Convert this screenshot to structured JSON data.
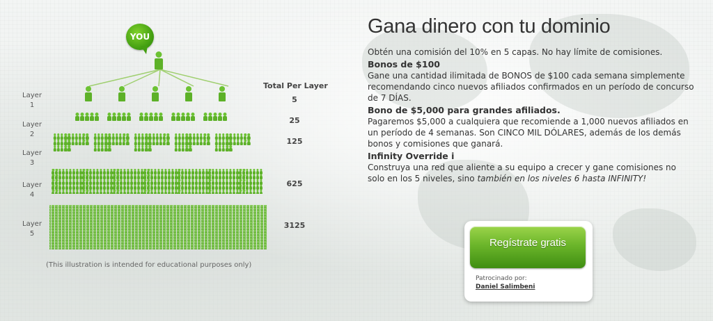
{
  "illustration": {
    "bubble_text": "YOU",
    "total_header": "Total Per Layer",
    "layers": [
      {
        "label": "Layer\n1",
        "count": "5"
      },
      {
        "label": "Layer\n2",
        "count": "25"
      },
      {
        "label": "Layer\n3",
        "count": "125"
      },
      {
        "label": "Layer\n4",
        "count": "625"
      },
      {
        "label": "Layer\n5",
        "count": "3125"
      }
    ],
    "disclaimer": "(This illustration is intended for educational purposes only)",
    "accent_color": "#6cc233"
  },
  "content": {
    "title": "Gana dinero con tu dominio",
    "intro": "Obtén una comisión del 10% en 5 capas. No hay límite de comisiones.",
    "sections": [
      {
        "heading": "Bonos de $100",
        "body": "Gane una cantidad ilimitada de BONOS de $100 cada semana simplemente recomendando cinco nuevos afiliados confirmados en un período de concurso de 7 DÍAS."
      },
      {
        "heading": "Bono de $5,000 para grandes afiliados.",
        "body": "Pagaremos $5,000 a cualquiera que recomiende a 1,000 nuevos afiliados en un período de 4 semanas. Son CINCO MIL DÓLARES, además de los demás bonos y comisiones que ganará."
      },
      {
        "heading": "Infinity Override i",
        "body": "Construya una red que aliente a su equipo a crecer y gane comisiones no solo en los 5 niveles, sino ",
        "body_em": "también en los niveles 6 hasta INFINITY!"
      }
    ]
  },
  "signup": {
    "button_label": "Regístrate gratis",
    "sponsor_label": "Patrocinado por:",
    "sponsor_name": "Daniel Salimbeni"
  }
}
